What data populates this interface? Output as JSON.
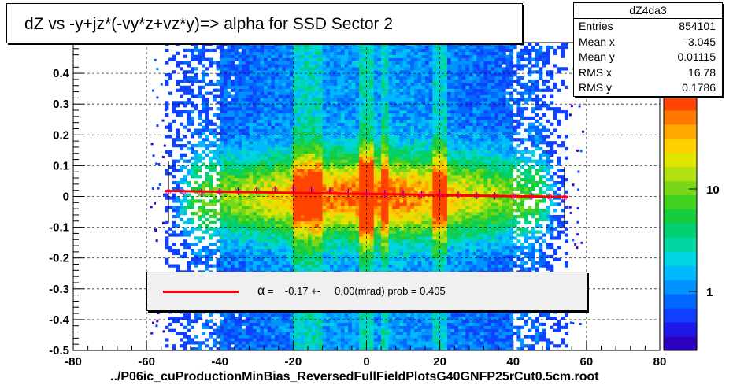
{
  "title": "dZ vs -y+jz*(-vy*z+vz*y)=> alpha for SSD Sector 2",
  "footer": "../P06ic_cuProductionMinBias_ReversedFullFieldPlotsG40GNFP25rCut0.5cm.root",
  "stats": {
    "name": "dZ4da3",
    "rows": [
      {
        "label": "Entries",
        "value": "854101"
      },
      {
        "label": "Mean x",
        "value": "-3.045"
      },
      {
        "label": "Mean y",
        "value": "0.01115"
      },
      {
        "label": "RMS x",
        "value": "16.78"
      },
      {
        "label": "RMS y",
        "value": "0.1786"
      }
    ]
  },
  "legend": {
    "symbol": "α",
    "text": " =    -0.17 +-     0.00(mrad) prob = 0.405"
  },
  "palette_labels": [
    "10",
    "1"
  ],
  "palette_cut": "2",
  "colors": {
    "fit_line": "#ff0000",
    "profile_points": "#ff00ff",
    "background": "#ffffff"
  },
  "chart_data": {
    "type": "heatmap",
    "title": "dZ vs -y+jz*(-vy*z+vz*y)=> alpha for SSD Sector 2",
    "xlim": [
      -80,
      80
    ],
    "ylim": [
      -0.5,
      0.5
    ],
    "x_ticks": [
      "-80",
      "-60",
      "-40",
      "-20",
      "0",
      "20",
      "40",
      "60",
      "80"
    ],
    "y_ticks": [
      "-0.5",
      "-0.4",
      "-0.3",
      "-0.2",
      "-0.1",
      "0",
      "0.1",
      "0.2",
      "0.3",
      "0.4"
    ],
    "z_scale": "log",
    "z_ticks": [
      "1",
      "10"
    ],
    "grid": true,
    "data_x_range": [
      -55,
      55
    ],
    "dense_bands_x": [
      [
        -20,
        -12
      ],
      [
        -2,
        2
      ],
      [
        4,
        6
      ],
      [
        18,
        22
      ]
    ],
    "profile": {
      "x": [
        -54,
        -50,
        -45,
        -40,
        -35,
        -30,
        -25,
        -20,
        -15,
        -10,
        -5,
        0,
        5,
        10,
        15,
        20,
        25,
        30,
        35,
        40,
        45,
        50,
        54
      ],
      "y": [
        0.015,
        0.014,
        0.013,
        0.015,
        0.017,
        0.019,
        0.021,
        0.022,
        0.02,
        0.017,
        0.013,
        0.01,
        0.008,
        0.008,
        0.007,
        0.006,
        0.005,
        0.003,
        0.002,
        0.001,
        0.0,
        -0.002,
        -0.004
      ]
    },
    "fit_line": {
      "x": [
        -55,
        55
      ],
      "y": [
        0.018,
        -0.002
      ]
    }
  }
}
